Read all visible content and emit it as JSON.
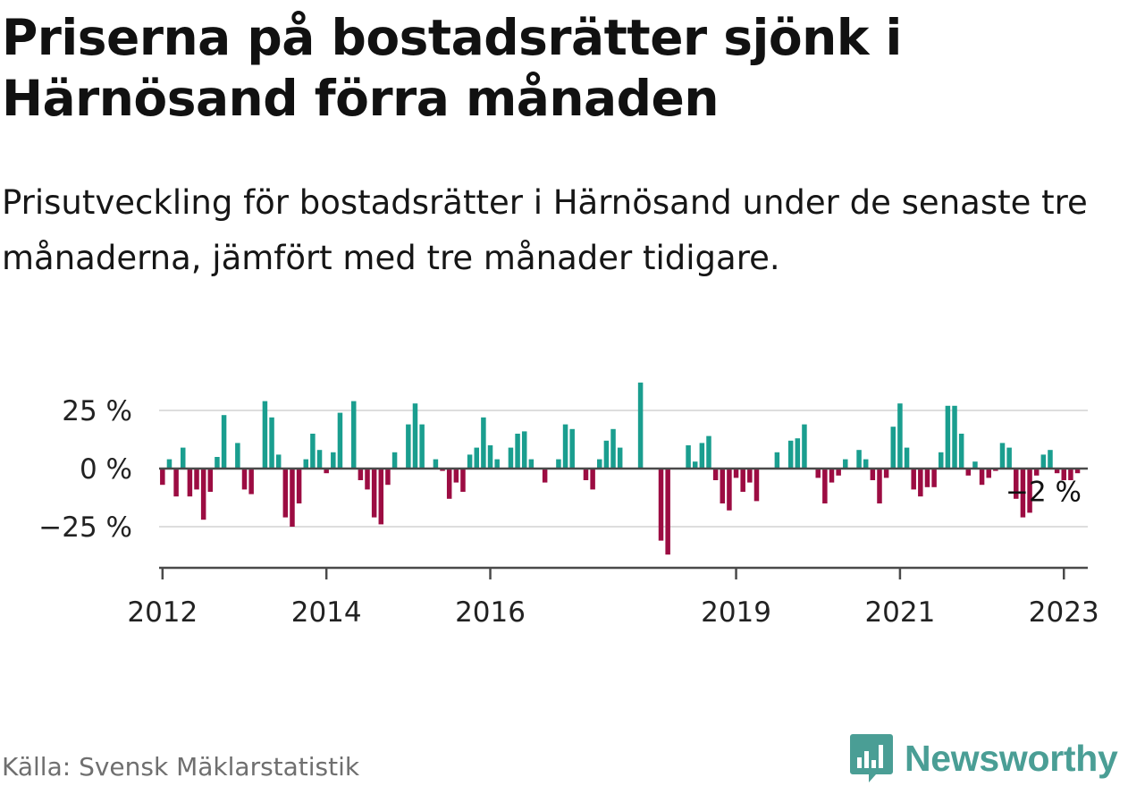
{
  "title": "Priserna på bostadsrätter sjönk i Härnösand förra månaden",
  "subtitle": "Prisutveckling för bostadsrätter i Härnösand under de senaste tre månaderna, jämfört med tre månader tidigare.",
  "source": "Källa: Svensk Mäklarstatistik",
  "brand": "Newsworthy",
  "colors": {
    "positive": "#1a9e8f",
    "negative": "#9c0c42",
    "brand": "#4a9e95",
    "axis": "#4a4a4a",
    "grid": "#dddddd"
  },
  "chart_data": {
    "type": "bar",
    "x_start": "2012-01",
    "x_end": "2023-04",
    "x_ticks": [
      "2012",
      "2014",
      "2016",
      "2019",
      "2021",
      "2023"
    ],
    "y_ticks": [
      25,
      0,
      -25
    ],
    "y_tick_labels": [
      "25 %",
      "0 %",
      "−25 %"
    ],
    "ylim": [
      -42,
      40
    ],
    "grid": true,
    "last_value_label": "−2 %",
    "values": [
      -7,
      4,
      -12,
      9,
      -12,
      -9,
      -22,
      -10,
      5,
      23,
      0,
      11,
      -9,
      -11,
      0,
      29,
      22,
      6,
      -21,
      -25,
      -15,
      4,
      15,
      8,
      -2,
      7,
      24,
      0,
      29,
      -5,
      -9,
      -21,
      -24,
      -7,
      7,
      0,
      19,
      28,
      19,
      0,
      4,
      -1,
      -13,
      -6,
      -10,
      6,
      9,
      22,
      10,
      4,
      0,
      9,
      15,
      16,
      4,
      0,
      -6,
      0,
      4,
      19,
      17,
      0,
      -5,
      -9,
      4,
      12,
      17,
      9,
      0,
      0,
      37,
      0,
      0,
      -31,
      -37,
      0,
      0,
      10,
      3,
      11,
      14,
      -5,
      -15,
      -18,
      -4,
      -10,
      -6,
      -14,
      0,
      0,
      7,
      0,
      12,
      13,
      19,
      0,
      -4,
      -15,
      -6,
      -3,
      4,
      0,
      8,
      4,
      -5,
      -15,
      -4,
      18,
      28,
      9,
      -9,
      -12,
      -8,
      -8,
      7,
      27,
      27,
      15,
      -3,
      3,
      -7,
      -4,
      -1,
      11,
      9,
      -13,
      -21,
      -19,
      -3,
      6,
      8,
      -2,
      -5,
      -5,
      -2
    ]
  }
}
